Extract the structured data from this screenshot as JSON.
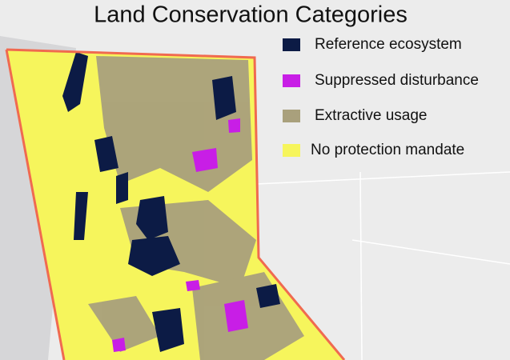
{
  "title": "Land Conservation Categories",
  "legend": {
    "items": [
      {
        "label": "Reference ecosystem",
        "color": "#0c1b45"
      },
      {
        "label": "Suppressed disturbance",
        "color": "#c81ee6"
      },
      {
        "label": "Extractive usage",
        "color": "#a9a07c"
      },
      {
        "label": "No protection mandate",
        "color": "#f6f55c"
      }
    ]
  }
}
